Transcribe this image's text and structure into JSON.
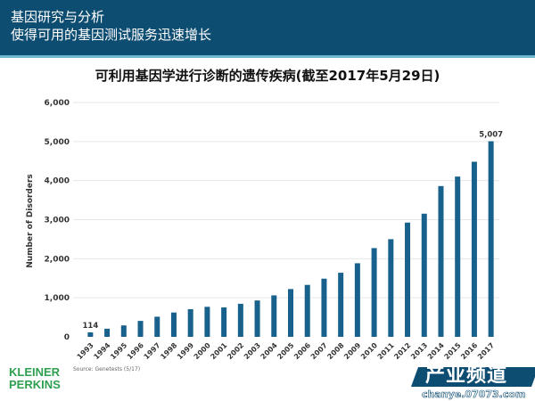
{
  "header": {
    "line1": "基因研究与分析",
    "line2": "使得可用的基因测试服务迅速增长"
  },
  "chart_data": {
    "type": "bar",
    "title": "可利用基因学进行诊断的遗传疾病(截至2017年5月29日)",
    "xlabel": "",
    "ylabel": "Number of Disorders",
    "ylim": [
      0,
      6000
    ],
    "yticks": [
      0,
      1000,
      2000,
      3000,
      4000,
      5000,
      6000
    ],
    "ytick_labels": [
      "0",
      "1,000",
      "2,000",
      "3,000",
      "4,000",
      "5,000",
      "6,000"
    ],
    "grid": true,
    "bar_color": "#17618c",
    "categories": [
      "1993",
      "1994",
      "1995",
      "1996",
      "1997",
      "1998",
      "1999",
      "2000",
      "2001",
      "2002",
      "2003",
      "2004",
      "2005",
      "2006",
      "2007",
      "2008",
      "2009",
      "2010",
      "2011",
      "2012",
      "2013",
      "2014",
      "2015",
      "2016",
      "2017"
    ],
    "values": [
      114,
      208,
      292,
      408,
      515,
      623,
      708,
      769,
      754,
      846,
      931,
      1062,
      1223,
      1330,
      1489,
      1641,
      1884,
      2272,
      2500,
      2925,
      3153,
      3860,
      4103,
      4483,
      5007
    ],
    "data_labels": {
      "0": "114",
      "24": "5,007"
    }
  },
  "footer": {
    "logo_line1": "KLEINER",
    "logo_line2": "PERKINS",
    "source": "Source: Genetests (5/17)",
    "logo_color": "#2e9e4f"
  },
  "watermark": {
    "text": "产业频道",
    "url": "chanye.07073.com"
  }
}
